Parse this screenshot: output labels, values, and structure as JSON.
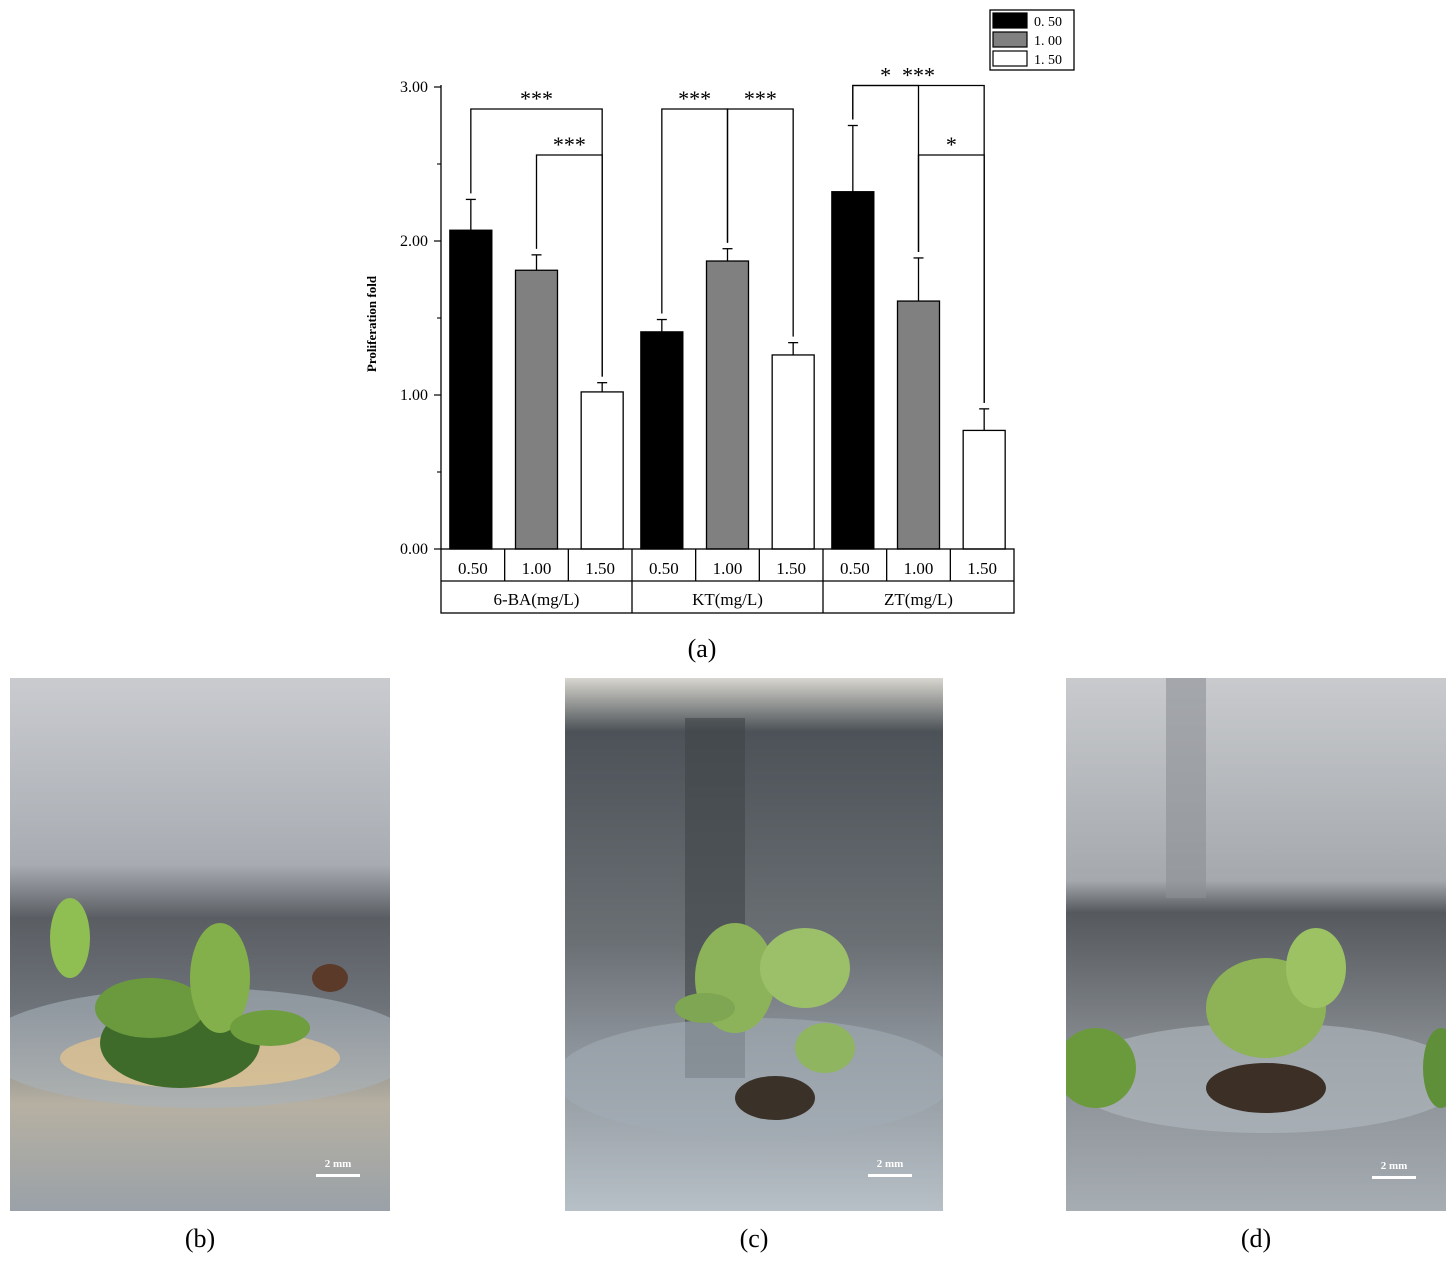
{
  "chart_data": {
    "type": "bar",
    "ylabel": "Proliferation fold",
    "ylim": [
      0,
      3
    ],
    "yticks": [
      "0.00",
      "1.00",
      "2.00",
      "3.00"
    ],
    "groups": [
      {
        "name": "6-BA(mg/L)",
        "categories": [
          "0.50",
          "1.00",
          "1.50"
        ],
        "values": [
          2.07,
          1.81,
          1.02
        ],
        "errors": [
          0.2,
          0.1,
          0.06
        ]
      },
      {
        "name": "KT(mg/L)",
        "categories": [
          "0.50",
          "1.00",
          "1.50"
        ],
        "values": [
          1.41,
          1.87,
          1.26
        ],
        "errors": [
          0.08,
          0.08,
          0.08
        ]
      },
      {
        "name": "ZT(mg/L)",
        "categories": [
          "0.50",
          "1.00",
          "1.50"
        ],
        "values": [
          2.32,
          1.61,
          0.77
        ],
        "errors": [
          0.43,
          0.28,
          0.14
        ]
      }
    ],
    "legend": {
      "placement": "top-right",
      "entries": [
        "0. 50",
        "1. 00",
        "1. 50"
      ]
    },
    "series_colors": [
      "#000000",
      "#808080",
      "#ffffff"
    ],
    "significance": [
      {
        "group": 0,
        "from": 0,
        "to": 2,
        "label": "***"
      },
      {
        "group": 0,
        "from": 1,
        "to": 2,
        "label": "***"
      },
      {
        "group": 1,
        "from": 0,
        "to": 1,
        "label": "***"
      },
      {
        "group": 1,
        "from": 1,
        "to": 2,
        "label": "***"
      },
      {
        "group": 2,
        "from": 0,
        "to": 2,
        "label": "***"
      },
      {
        "group": 2,
        "from": 0,
        "to": 1,
        "label": "*"
      },
      {
        "group": 2,
        "from": 1,
        "to": 2,
        "label": "*"
      }
    ]
  },
  "panels": {
    "a": "(a)",
    "b": "(b)",
    "c": "(c)",
    "d": "(d)"
  },
  "scale_bars": [
    "2 mm",
    "2 mm",
    "2 mm"
  ]
}
